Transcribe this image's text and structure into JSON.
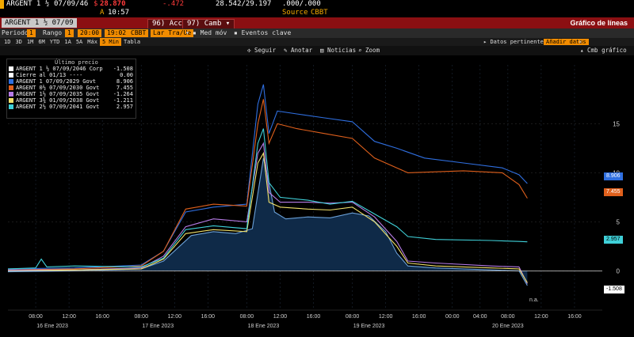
{
  "header": {
    "ticker_prefix": "ARGENT 1",
    "ticker_fraction": "½",
    "maturity": "07/09/46",
    "price_change_prefix": "$",
    "last_price": "28.870",
    "change": "-.472",
    "bid_ask": "28.542/29.197",
    "yield_pair": ".000/.000",
    "time_prefix": "A",
    "time": "10:57",
    "source_label": "Source",
    "source": "CBBT"
  },
  "toolbar": {
    "security": "ARGENT 1 ½ 07/09",
    "num_label": "96)",
    "action_label": "Acc",
    "num2_label": "97)",
    "settings_label": "Camb",
    "page_title": "Gráfico de líneas"
  },
  "controls": {
    "period_label": "Periodo",
    "period_value": "1",
    "range_label": "Rango",
    "range_value": "1",
    "time_start": "20:00",
    "time_end": "19:02",
    "currency": "CBBT",
    "series_type": "Lar Tra/Ue",
    "med_label": "Med móv",
    "events_label": "Eventos clave",
    "data_label": "Datos pertinentes",
    "add_label": "Añadir datos"
  },
  "timeframes": [
    {
      "label": "1D",
      "selected": false
    },
    {
      "label": "3D",
      "selected": false
    },
    {
      "label": "1M",
      "selected": false
    },
    {
      "label": "6M",
      "selected": false
    },
    {
      "label": "YTD",
      "selected": false
    },
    {
      "label": "1A",
      "selected": false
    },
    {
      "label": "5A",
      "selected": false
    },
    {
      "label": "Máx",
      "selected": false
    },
    {
      "label": "5 Min",
      "selected": true
    },
    {
      "label": "Tabla",
      "selected": false
    }
  ],
  "chart_tools": {
    "follow": "Seguir",
    "annotate": "Anotar",
    "news": "Noticias",
    "zoom": "Zoom",
    "chart_opts": "Cmb gráfico"
  },
  "legend": {
    "header": "Último precio",
    "rows": [
      {
        "name": "ARGENT 1 ½ 07/09/2046 Corp",
        "value": "-1.508",
        "color": "#ffffff"
      },
      {
        "name": "Cierre al 01/13 ----",
        "value": "0.00",
        "color": "#ffffff"
      },
      {
        "name": "ARGENT 1 07/09/2029 Govt",
        "value": "8.906",
        "color": "#2f6fe0"
      },
      {
        "name": "ARGENT 0½ 07/09/2030 Govt",
        "value": "7.455",
        "color": "#e0601c"
      },
      {
        "name": "ARGENT 1½ 07/09/2035 Govt",
        "value": "-1.264",
        "color": "#b67be6"
      },
      {
        "name": "ARGENT 3¾ 01/09/2038 Govt",
        "value": "-1.211",
        "color": "#f0e06a"
      },
      {
        "name": "ARGENT 2½ 07/09/2041 Govt",
        "value": "2.957",
        "color": "#3fd0d8"
      }
    ]
  },
  "end_tags": [
    {
      "value": "8.906",
      "color": "#2f6fe0",
      "text_color": "#ffffff"
    },
    {
      "value": "7.455",
      "color": "#e0601c",
      "text_color": "#ffffff"
    },
    {
      "value": "2.957",
      "color": "#3fd0d8",
      "text_color": "#000000"
    },
    {
      "value": "-1.508",
      "color": "#ffffff",
      "text_color": "#000000"
    }
  ],
  "na_label": "n.a.",
  "chart_data": {
    "type": "line",
    "y_ticks": [
      0,
      5,
      10,
      15
    ],
    "ylim": [
      -4,
      21
    ],
    "x_ticks": [
      {
        "label": "08:00",
        "x": 0.3
      },
      {
        "label": "12:00",
        "x": 0.9
      },
      {
        "label": "16:00",
        "x": 1.5
      },
      {
        "label": "08:00",
        "x": 2.2
      },
      {
        "label": "12:00",
        "x": 2.8
      },
      {
        "label": "16:00",
        "x": 3.4
      },
      {
        "label": "08:00",
        "x": 4.1
      },
      {
        "label": "12:00",
        "x": 4.7
      },
      {
        "label": "16:00",
        "x": 5.3
      },
      {
        "label": "08:00",
        "x": 6.0
      },
      {
        "label": "12:00",
        "x": 6.6
      },
      {
        "label": "16:00",
        "x": 7.2
      },
      {
        "label": "00:00",
        "x": 7.8
      },
      {
        "label": "04:00",
        "x": 8.3
      },
      {
        "label": "08:00",
        "x": 8.8
      },
      {
        "label": "12:00",
        "x": 9.4
      },
      {
        "label": "16:00",
        "x": 10.0
      }
    ],
    "day_labels": [
      {
        "label": "16 Ene 2023",
        "x": 0.6
      },
      {
        "label": "17 Ene 2023",
        "x": 2.5
      },
      {
        "label": "18 Ene 2023",
        "x": 4.4
      },
      {
        "label": "19 Ene 2023",
        "x": 6.3
      },
      {
        "label": "20 Ene 2023",
        "x": 8.8
      }
    ],
    "xlim": [
      -0.2,
      10.5
    ],
    "series": [
      {
        "name": "ARGENT 1 ½ 07/09/2046 Corp",
        "color": "#6aa0d8",
        "area": true,
        "points": [
          [
            -0.2,
            -0.1
          ],
          [
            1.0,
            0.0
          ],
          [
            2.2,
            0.2
          ],
          [
            2.6,
            1.0
          ],
          [
            3.1,
            3.6
          ],
          [
            3.5,
            4.0
          ],
          [
            3.9,
            3.8
          ],
          [
            4.2,
            4.3
          ],
          [
            4.4,
            11.5
          ],
          [
            4.5,
            9.0
          ],
          [
            4.6,
            6.0
          ],
          [
            4.8,
            5.3
          ],
          [
            5.2,
            5.5
          ],
          [
            5.6,
            5.4
          ],
          [
            6.0,
            5.9
          ],
          [
            6.3,
            5.6
          ],
          [
            6.6,
            4.0
          ],
          [
            6.8,
            1.8
          ],
          [
            7.0,
            0.5
          ],
          [
            7.5,
            0.3
          ],
          [
            8.5,
            0.1
          ],
          [
            9.0,
            0.0
          ],
          [
            9.15,
            -1.5
          ]
        ]
      },
      {
        "name": "ARGENT 1 07/09/2029 Govt",
        "color": "#2f6fe0",
        "points": [
          [
            -0.2,
            0.2
          ],
          [
            1.0,
            0.3
          ],
          [
            2.2,
            0.6
          ],
          [
            2.6,
            2.0
          ],
          [
            3.0,
            6.0
          ],
          [
            3.5,
            6.5
          ],
          [
            4.1,
            6.8
          ],
          [
            4.3,
            17.0
          ],
          [
            4.4,
            19.0
          ],
          [
            4.5,
            14.0
          ],
          [
            4.65,
            16.3
          ],
          [
            5.0,
            16.0
          ],
          [
            5.5,
            15.6
          ],
          [
            6.0,
            15.2
          ],
          [
            6.4,
            13.2
          ],
          [
            6.8,
            12.5
          ],
          [
            7.3,
            11.5
          ],
          [
            8.0,
            11.0
          ],
          [
            8.7,
            10.5
          ],
          [
            9.0,
            9.8
          ],
          [
            9.15,
            8.9
          ]
        ]
      },
      {
        "name": "ARGENT 0½ 07/09/2030 Govt",
        "color": "#e0601c",
        "points": [
          [
            -0.2,
            0.1
          ],
          [
            1.0,
            0.2
          ],
          [
            2.2,
            0.5
          ],
          [
            2.6,
            2.0
          ],
          [
            3.0,
            6.3
          ],
          [
            3.5,
            6.8
          ],
          [
            4.1,
            6.6
          ],
          [
            4.3,
            15.0
          ],
          [
            4.4,
            17.5
          ],
          [
            4.5,
            13.0
          ],
          [
            4.65,
            15.0
          ],
          [
            5.0,
            14.5
          ],
          [
            5.5,
            14.0
          ],
          [
            6.0,
            13.5
          ],
          [
            6.4,
            11.5
          ],
          [
            6.8,
            10.5
          ],
          [
            7.0,
            10.0
          ],
          [
            8.0,
            10.2
          ],
          [
            8.7,
            10.0
          ],
          [
            9.0,
            8.8
          ],
          [
            9.15,
            7.4
          ]
        ]
      },
      {
        "name": "ARGENT 1½ 07/09/2035 Govt",
        "color": "#b67be6",
        "points": [
          [
            -0.2,
            0.1
          ],
          [
            1.0,
            0.1
          ],
          [
            2.2,
            0.3
          ],
          [
            2.6,
            1.5
          ],
          [
            3.0,
            4.5
          ],
          [
            3.5,
            5.3
          ],
          [
            4.1,
            5.0
          ],
          [
            4.3,
            12.0
          ],
          [
            4.4,
            13.0
          ],
          [
            4.5,
            8.0
          ],
          [
            4.7,
            7.0
          ],
          [
            5.2,
            7.0
          ],
          [
            5.6,
            6.9
          ],
          [
            6.0,
            7.0
          ],
          [
            6.4,
            5.5
          ],
          [
            6.8,
            3.0
          ],
          [
            7.0,
            1.0
          ],
          [
            7.5,
            0.8
          ],
          [
            8.5,
            0.5
          ],
          [
            9.0,
            0.4
          ],
          [
            9.15,
            -1.3
          ]
        ]
      },
      {
        "name": "ARGENT 3¾ 01/09/2038 Govt",
        "color": "#f0e06a",
        "points": [
          [
            -0.2,
            0.0
          ],
          [
            1.0,
            0.1
          ],
          [
            2.2,
            0.2
          ],
          [
            2.6,
            1.2
          ],
          [
            3.0,
            3.8
          ],
          [
            3.5,
            4.2
          ],
          [
            4.1,
            4.0
          ],
          [
            4.3,
            11.0
          ],
          [
            4.4,
            12.0
          ],
          [
            4.5,
            7.0
          ],
          [
            4.7,
            6.5
          ],
          [
            5.2,
            6.3
          ],
          [
            5.6,
            6.2
          ],
          [
            6.0,
            6.5
          ],
          [
            6.4,
            5.0
          ],
          [
            6.8,
            2.5
          ],
          [
            7.0,
            0.8
          ],
          [
            7.5,
            0.5
          ],
          [
            8.5,
            0.3
          ],
          [
            9.0,
            0.2
          ],
          [
            9.15,
            -1.2
          ]
        ]
      },
      {
        "name": "ARGENT 2½ 07/09/2041 Govt",
        "color": "#3fd0d8",
        "points": [
          [
            -0.2,
            0.2
          ],
          [
            0.3,
            0.3
          ],
          [
            0.4,
            1.2
          ],
          [
            0.5,
            0.4
          ],
          [
            1.0,
            0.5
          ],
          [
            2.2,
            0.4
          ],
          [
            2.6,
            1.3
          ],
          [
            3.0,
            4.2
          ],
          [
            3.5,
            4.6
          ],
          [
            4.1,
            4.3
          ],
          [
            4.3,
            13.0
          ],
          [
            4.4,
            14.5
          ],
          [
            4.5,
            9.0
          ],
          [
            4.7,
            7.5
          ],
          [
            5.2,
            7.2
          ],
          [
            5.6,
            6.8
          ],
          [
            6.0,
            7.1
          ],
          [
            6.4,
            5.8
          ],
          [
            6.8,
            4.5
          ],
          [
            7.0,
            3.5
          ],
          [
            7.5,
            3.2
          ],
          [
            8.5,
            3.1
          ],
          [
            9.0,
            3.0
          ],
          [
            9.15,
            2.96
          ]
        ]
      }
    ]
  }
}
